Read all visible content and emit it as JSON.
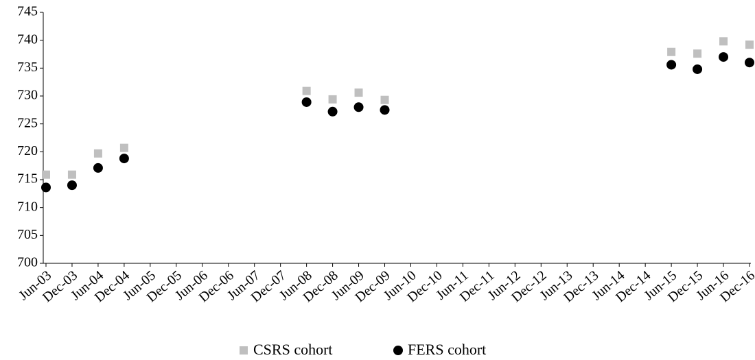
{
  "chart_data": {
    "type": "scatter",
    "categories": [
      "Jun-03",
      "Dec-03",
      "Jun-04",
      "Dec-04",
      "Jun-05",
      "Dec-05",
      "Jun-06",
      "Dec-06",
      "Jun-07",
      "Dec-07",
      "Jun-08",
      "Dec-08",
      "Jun-09",
      "Dec-09",
      "Jun-10",
      "Dec-10",
      "Jun-11",
      "Dec-11",
      "Jun-12",
      "Dec-12",
      "Jun-13",
      "Dec-13",
      "Jun-14",
      "Dec-14",
      "Jun-15",
      "Dec-15",
      "Jun-16",
      "Dec-16"
    ],
    "series": [
      {
        "name": "CSRS cohort",
        "color": "#bfbfbf",
        "marker": "square",
        "values": [
          715.9,
          715.9,
          719.7,
          720.7,
          null,
          null,
          null,
          null,
          null,
          null,
          730.9,
          729.4,
          730.6,
          729.3,
          null,
          null,
          null,
          null,
          null,
          null,
          null,
          null,
          null,
          null,
          737.9,
          737.6,
          739.8,
          739.2
        ]
      },
      {
        "name": "FERS cohort",
        "color": "#000000",
        "marker": "circle",
        "values": [
          713.6,
          714.0,
          717.1,
          718.8,
          null,
          null,
          null,
          null,
          null,
          null,
          728.9,
          727.2,
          728.0,
          727.5,
          null,
          null,
          null,
          null,
          null,
          null,
          null,
          null,
          null,
          null,
          735.6,
          734.8,
          737.0,
          736.0
        ]
      }
    ],
    "ylim": [
      700,
      745
    ],
    "yticks": [
      700,
      705,
      710,
      715,
      720,
      725,
      730,
      735,
      740,
      745
    ],
    "grid": false,
    "legend": "bottom"
  }
}
